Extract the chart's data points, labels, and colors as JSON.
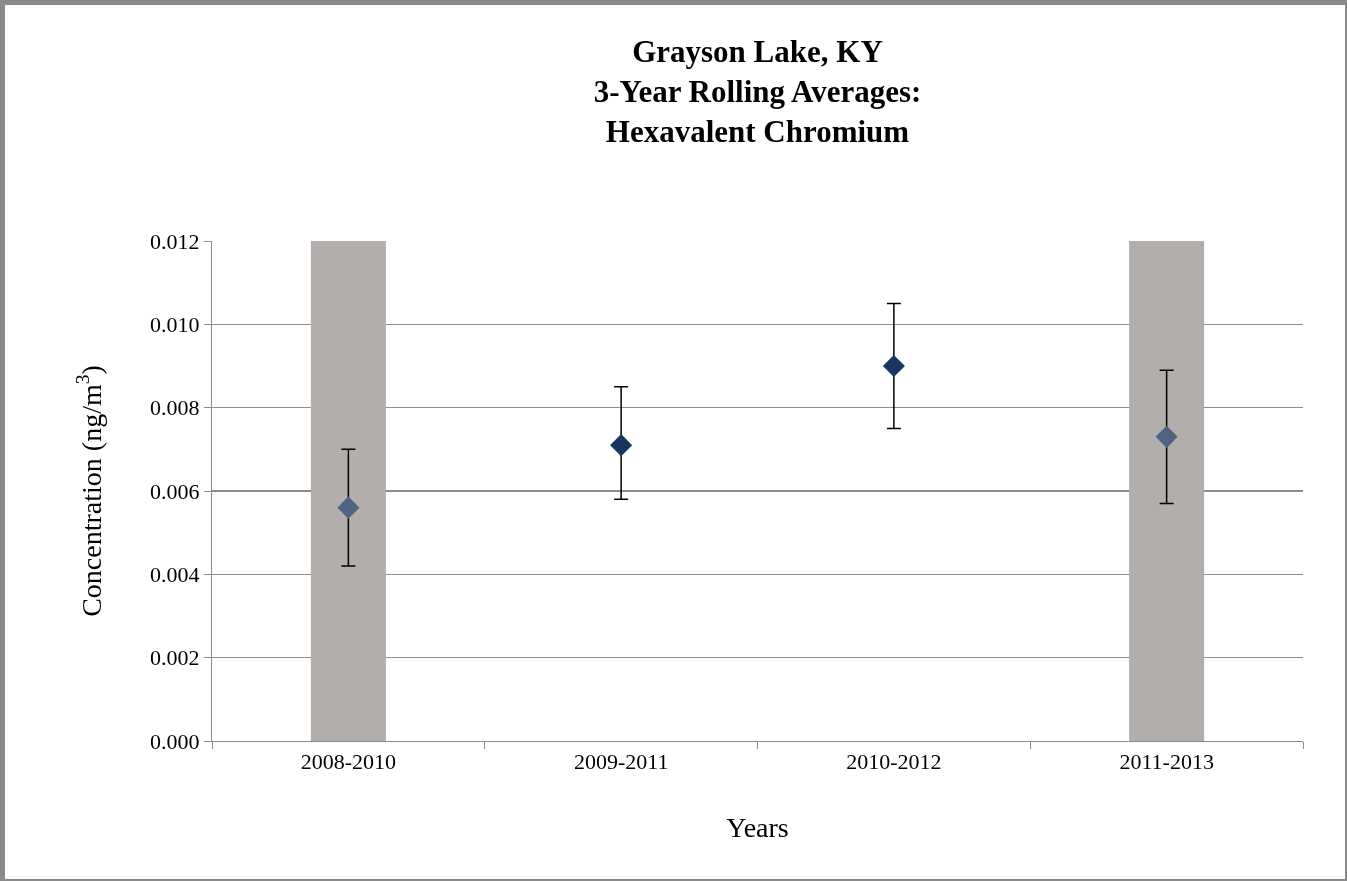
{
  "chart_data": {
    "type": "scatter",
    "title": "Grayson Lake, KY\n3-Year Rolling Averages:\nHexavalent Chromium",
    "xlabel": "Years",
    "ylabel": "Concentration (ng/m$^{3}$)",
    "categories": [
      "2008-2010",
      "2009-2011",
      "2010-2012",
      "2011-2013"
    ],
    "series": [
      {
        "type": "bar",
        "color": "#b1aeac",
        "values": [
          0.012,
          null,
          null,
          0.012
        ]
      },
      {
        "color": "#17375e",
        "colors": [
          "#4f6482",
          "#17375e",
          "#17375e",
          "#4f6482"
        ],
        "values": [
          0.0056,
          0.0071,
          0.009,
          0.0073
        ],
        "errors": [
          [
            0.0042,
            0.007
          ],
          [
            0.0058,
            0.0085
          ],
          [
            0.0075,
            0.0105
          ],
          [
            0.0057,
            0.0089
          ]
        ]
      }
    ],
    "ylim": [
      0,
      0.012
    ],
    "yticks": [
      {
        "value": 0,
        "label": "0.000"
      },
      {
        "value": 0.002,
        "label": "0.002"
      },
      {
        "value": 0.004,
        "label": "0.004"
      },
      {
        "value": 0.006,
        "label": "0.006"
      },
      {
        "value": 0.008,
        "label": "0.008"
      },
      {
        "value": 0.01,
        "label": "0.010"
      },
      {
        "value": 0.012,
        "label": "0.012"
      }
    ],
    "grid": "y",
    "marker": "diamond"
  }
}
